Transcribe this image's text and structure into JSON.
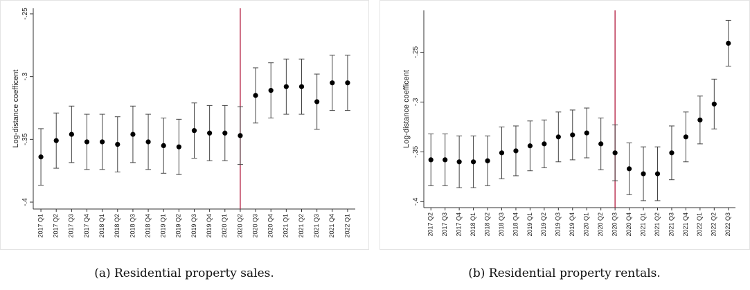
{
  "chart_data": [
    {
      "type": "errorbar",
      "caption": "(a) Residential property sales.",
      "ylabel": "Log-distance coefficent",
      "categories": [
        "2017 Q1",
        "2017 Q2",
        "2017 Q3",
        "2017 Q4",
        "2018 Q1",
        "2018 Q2",
        "2018 Q3",
        "2018 Q4",
        "2019 Q1",
        "2019 Q2",
        "2019 Q3",
        "2019 Q4",
        "2020 Q1",
        "2020 Q2",
        "2020 Q3",
        "2020 Q4",
        "2021 Q1",
        "2021 Q2",
        "2021 Q3",
        "2021 Q4",
        "2022 Q1"
      ],
      "values": [
        -0.364,
        -0.351,
        -0.346,
        -0.352,
        -0.352,
        -0.354,
        -0.346,
        -0.352,
        -0.355,
        -0.356,
        -0.343,
        -0.345,
        -0.345,
        -0.347,
        -0.315,
        -0.311,
        -0.308,
        -0.308,
        -0.32,
        -0.305,
        -0.305
      ],
      "errors": [
        0.0225,
        0.022,
        0.0225,
        0.022,
        0.022,
        0.022,
        0.0225,
        0.022,
        0.022,
        0.022,
        0.022,
        0.022,
        0.022,
        0.023,
        0.022,
        0.022,
        0.022,
        0.022,
        0.022,
        0.022,
        0.022
      ],
      "color": "#000000",
      "vline": "2020 Q2",
      "vline_color": "#b2183c",
      "ylim": [
        -0.4055,
        -0.2456
      ],
      "yticks": [
        {
          "value": -0.4,
          "label": "-.4"
        },
        {
          "value": -0.35,
          "label": "-.35"
        },
        {
          "value": -0.3,
          "label": "-.3"
        },
        {
          "value": -0.25,
          "label": "-.25"
        }
      ]
    },
    {
      "type": "errorbar",
      "caption": "(b) Residential property rentals.",
      "ylabel": "Log-distance coefficent",
      "categories": [
        "2017 Q2",
        "2017 Q3",
        "2017 Q4",
        "2018 Q1",
        "2018 Q2",
        "2018 Q3",
        "2018 Q4",
        "2019 Q1",
        "2019 Q2",
        "2019 Q3",
        "2019 Q4",
        "2020 Q1",
        "2020 Q2",
        "2020 Q3",
        "2020 Q4",
        "2021 Q1",
        "2021 Q2",
        "2021 Q3",
        "2021 Q4",
        "2022 Q1",
        "2022 Q2",
        "2022 Q3"
      ],
      "values": [
        -0.358,
        -0.358,
        -0.36,
        -0.36,
        -0.359,
        -0.351,
        -0.349,
        -0.344,
        -0.342,
        -0.335,
        -0.333,
        -0.331,
        -0.342,
        -0.351,
        -0.367,
        -0.372,
        -0.372,
        -0.351,
        -0.335,
        -0.318,
        -0.302,
        -0.241
      ],
      "errors": [
        0.026,
        0.026,
        0.026,
        0.026,
        0.025,
        0.026,
        0.025,
        0.025,
        0.024,
        0.025,
        0.025,
        0.025,
        0.026,
        0.028,
        0.026,
        0.027,
        0.027,
        0.027,
        0.025,
        0.024,
        0.025,
        0.023
      ],
      "color": "#000000",
      "vline": "2020 Q3",
      "vline_color": "#b2183c",
      "ylim": [
        -0.406,
        -0.208
      ],
      "yticks": [
        {
          "value": -0.4,
          "label": "-.4"
        },
        {
          "value": -0.35,
          "label": "-.35"
        },
        {
          "value": -0.3,
          "label": "-.3"
        },
        {
          "value": -0.25,
          "label": "-.25"
        }
      ]
    }
  ]
}
